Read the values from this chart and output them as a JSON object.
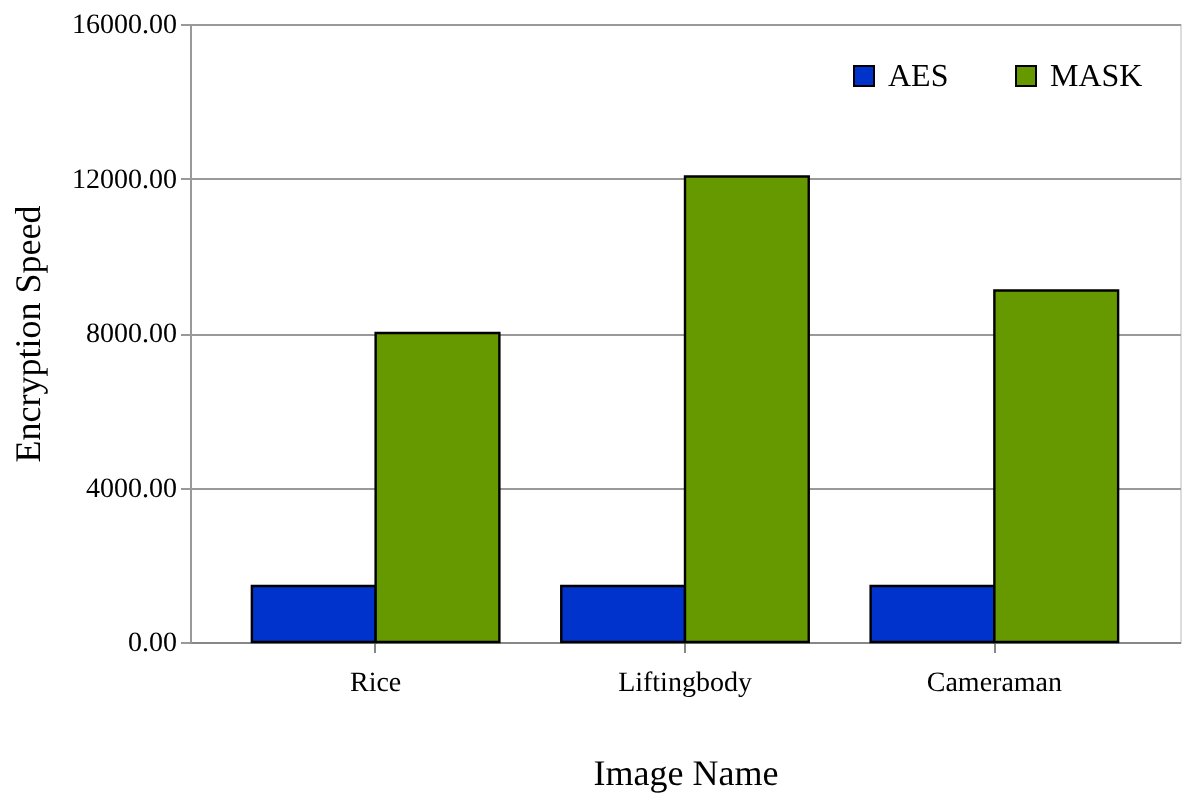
{
  "chart_data": {
    "type": "bar",
    "xlabel": "Image Name",
    "ylabel": "Encryption Speed",
    "categories": [
      "Rice",
      "Liftingbody",
      "Cameraman"
    ],
    "series": [
      {
        "name": "AES",
        "color": "#0033cc",
        "values": [
          1450,
          1450,
          1450
        ]
      },
      {
        "name": "MASK",
        "color": "#669900",
        "values": [
          8000,
          12050,
          9100
        ]
      }
    ],
    "ylim": [
      0,
      16000
    ],
    "yticks": [
      {
        "value": 0,
        "label": "0.00"
      },
      {
        "value": 4000,
        "label": "4000.00"
      },
      {
        "value": 8000,
        "label": "8000.00"
      },
      {
        "value": 12000,
        "label": "12000.00"
      },
      {
        "value": 16000,
        "label": "16000.00"
      }
    ],
    "grid": "y",
    "legend": "top right"
  }
}
